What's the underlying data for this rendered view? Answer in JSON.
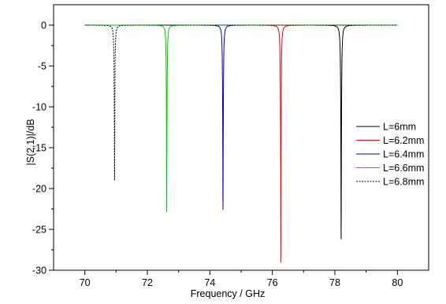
{
  "chart_data": {
    "type": "line",
    "xlabel": "Frequency / GHz",
    "ylabel": "|S(2,1)|/dB",
    "xlim": [
      69,
      81
    ],
    "ylim": [
      -30,
      2.5
    ],
    "xticks": [
      70,
      72,
      74,
      76,
      78,
      80
    ],
    "yticks": [
      0,
      -5,
      -10,
      -15,
      -20,
      -25,
      -30
    ],
    "legend_position": "right",
    "grid": false,
    "x_range": [
      70,
      80
    ],
    "series": [
      {
        "name": "L=6mm",
        "color": "#000000",
        "dash": "solid",
        "resonance_ghz": 78.2,
        "min_db": -26.2,
        "q_width": 0.022
      },
      {
        "name": "L=6.2mm",
        "color": "#ff0000",
        "dash": "solid",
        "resonance_ghz": 76.27,
        "min_db": -29.1,
        "q_width": 0.02
      },
      {
        "name": "L=6.4mm",
        "color": "#0000cc",
        "dash": "solid",
        "resonance_ghz": 74.42,
        "min_db": -22.6,
        "q_width": 0.02
      },
      {
        "name": "L=6.6mm",
        "color": "#00cc00",
        "dash": "solid",
        "resonance_ghz": 72.62,
        "min_db": -22.9,
        "q_width": 0.018
      },
      {
        "name": "L=6.8mm",
        "color": "#000000",
        "dash": "dashed",
        "resonance_ghz": 70.95,
        "min_db": -19.0,
        "q_width": 0.018
      }
    ]
  }
}
